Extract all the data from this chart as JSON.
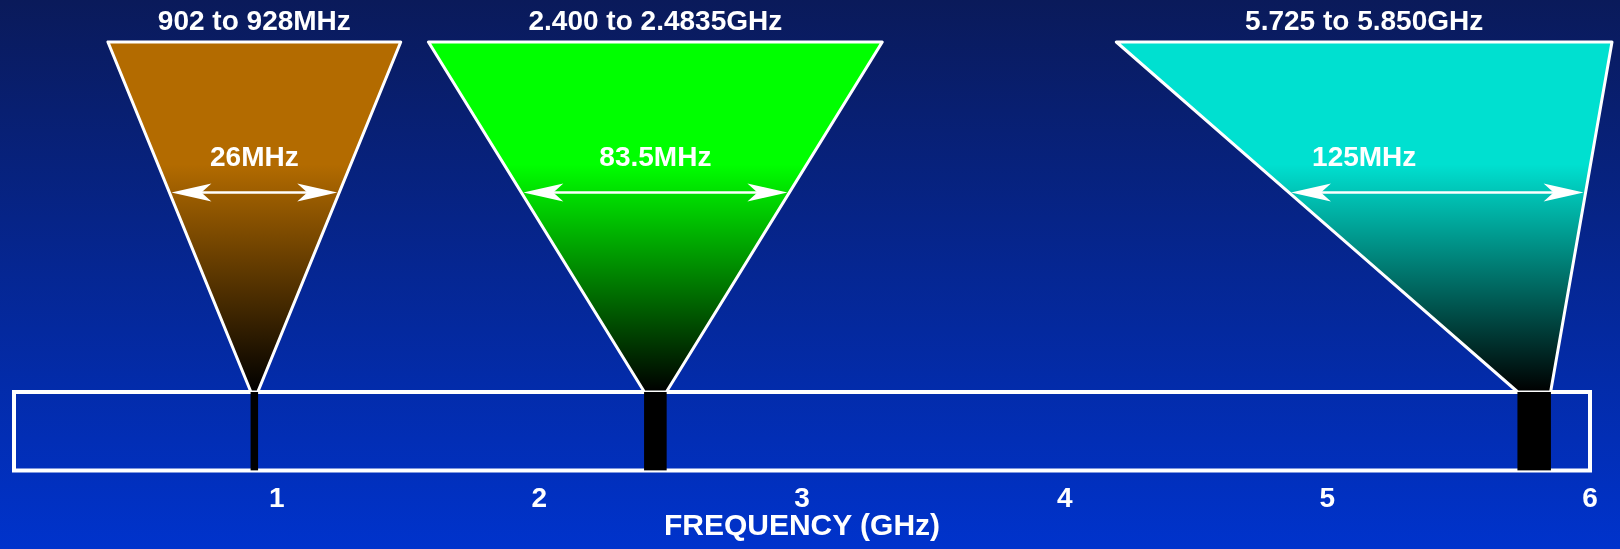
{
  "chart_data": {
    "type": "bar",
    "orientation": "horizontal",
    "xlabel": "FREQUENCY (GHz)",
    "xlim": [
      0,
      6
    ],
    "xticks": [
      1,
      2,
      3,
      4,
      5,
      6
    ],
    "categories": [
      null
    ],
    "series": [
      {
        "color": "#000000",
        "base": [
          0.902
        ],
        "values": [
          0.026
        ]
      },
      {
        "color": "#000000",
        "base": [
          2.4
        ],
        "values": [
          0.0835
        ]
      },
      {
        "color": "#000000",
        "base": [
          5.725
        ],
        "values": [
          0.125
        ]
      }
    ],
    "annotations": [
      "902 to 928MHz",
      "2.400 to 2.4835GHz",
      "5.725 to 5.850GHz",
      "26MHz",
      "83.5MHz",
      "125MHz"
    ]
  }
}
